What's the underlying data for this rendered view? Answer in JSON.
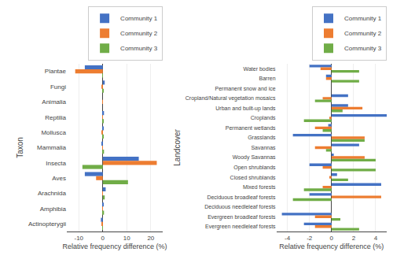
{
  "chart_data": [
    {
      "type": "bar",
      "orientation": "horizontal",
      "categories": [
        "Plantae",
        "Fungi",
        "Animalia",
        "Reptilia",
        "Mollusca",
        "Mammalia",
        "Insecta",
        "Aves",
        "Arachnida",
        "Amphibia",
        "Actinopterygii"
      ],
      "series": [
        {
          "name": "Community 1",
          "color": "#4472c4",
          "values": [
            -7.5,
            0.8,
            0.0,
            0.5,
            0.1,
            -0.5,
            15.0,
            -7.5,
            1.2,
            0.2,
            -0.8
          ]
        },
        {
          "name": "Community 2",
          "color": "#ed7d31",
          "values": [
            -11.5,
            -0.3,
            -0.1,
            -0.2,
            -0.3,
            -0.2,
            22.5,
            -2.8,
            -0.2,
            -0.1,
            -0.3
          ]
        },
        {
          "name": "Community 3",
          "color": "#70ad47",
          "values": [
            -0.2,
            0.3,
            0.0,
            0.1,
            0.3,
            0.5,
            -8.5,
            10.5,
            0.8,
            0.5,
            -0.1
          ]
        }
      ],
      "xlabel": "Relative frequency difference (%)",
      "ylabel": "Taxon",
      "xlim": [
        -15,
        25
      ],
      "xticks": [
        -10,
        0,
        10,
        20
      ],
      "grid": true,
      "legend": "upper right"
    },
    {
      "type": "bar",
      "orientation": "horizontal",
      "categories": [
        "Water bodies",
        "Barren",
        "Permanent snow and ice",
        "Cropland/Natural vegetation mosaics",
        "Urban and built-up lands",
        "Croplands",
        "Permanent wetlands",
        "Grasslands",
        "Savannas",
        "Woody Savannas",
        "Open shrublands",
        "Closed shrublands",
        "Mixed forests",
        "Deciduous broadleaf forests",
        "Deciduous needleleaf forests",
        "Evergreen broadleaf forests",
        "Evergreen needleleaf forests"
      ],
      "series": [
        {
          "name": "Community 1",
          "color": "#4472c4",
          "values": [
            -2.0,
            -0.5,
            0.0,
            1.5,
            1.5,
            5.0,
            -0.3,
            -3.5,
            2.5,
            0.2,
            -2.0,
            0.5,
            4.5,
            -2.0,
            0.0,
            -4.5,
            -2.5
          ]
        },
        {
          "name": "Community 2",
          "color": "#ed7d31",
          "values": [
            -1.0,
            -0.5,
            0.0,
            -0.8,
            2.8,
            -0.2,
            -1.5,
            3.0,
            -1.5,
            3.0,
            -0.8,
            -0.2,
            -0.8,
            4.5,
            0.0,
            -1.5,
            -1.5
          ]
        },
        {
          "name": "Community 3",
          "color": "#70ad47",
          "values": [
            2.5,
            2.5,
            0.0,
            -1.5,
            1.0,
            -2.5,
            -0.8,
            3.0,
            -0.5,
            4.0,
            4.0,
            1.5,
            -2.5,
            -3.5,
            0.0,
            0.8,
            2.5
          ]
        }
      ],
      "xlabel": "Relative frequency difference (%)",
      "ylabel": "Landcover",
      "xlim": [
        -5,
        5
      ],
      "xticks": [
        -4,
        -2,
        0,
        2,
        4
      ],
      "grid": true,
      "legend": "upper right"
    }
  ]
}
